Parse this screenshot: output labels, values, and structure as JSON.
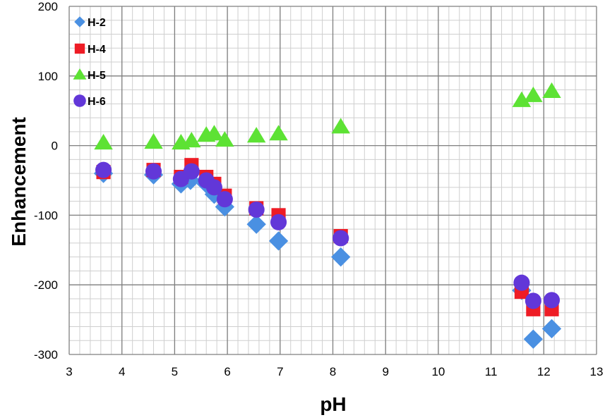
{
  "chart_data": {
    "type": "scatter",
    "title": "",
    "xlabel": "pH",
    "ylabel": "Enhancement",
    "xlim": [
      3,
      13
    ],
    "ylim": [
      -300,
      200
    ],
    "x_major_ticks": [
      3,
      4,
      5,
      6,
      7,
      8,
      9,
      10,
      11,
      12,
      13
    ],
    "x_tick_labels": [
      "3",
      "4",
      "5",
      "6",
      "7",
      "8",
      "9",
      "10",
      "11",
      "12",
      "13"
    ],
    "x_minor_step": 0.2,
    "y_major_ticks": [
      200,
      100,
      0,
      -100,
      -200,
      -300
    ],
    "y_tick_labels": [
      "200",
      "100",
      "0",
      "-100",
      "-200",
      "-300"
    ],
    "y_minor_step": 20,
    "grid": true,
    "legend_position": "top-left",
    "series": [
      {
        "name": "H-2",
        "marker": "diamond",
        "color": "#4a90e2",
        "points": [
          {
            "x": 3.65,
            "y": -40
          },
          {
            "x": 4.6,
            "y": -42
          },
          {
            "x": 5.12,
            "y": -55
          },
          {
            "x": 5.3,
            "y": -50
          },
          {
            "x": 5.6,
            "y": -55
          },
          {
            "x": 5.75,
            "y": -70
          },
          {
            "x": 5.95,
            "y": -88
          },
          {
            "x": 6.55,
            "y": -113
          },
          {
            "x": 6.97,
            "y": -137
          },
          {
            "x": 8.15,
            "y": -160
          },
          {
            "x": 11.58,
            "y": -208
          },
          {
            "x": 11.8,
            "y": -278
          },
          {
            "x": 12.15,
            "y": -263
          }
        ]
      },
      {
        "name": "H-4",
        "marker": "square",
        "color": "#ee1c25",
        "points": [
          {
            "x": 3.65,
            "y": -38
          },
          {
            "x": 4.6,
            "y": -35
          },
          {
            "x": 5.12,
            "y": -45
          },
          {
            "x": 5.32,
            "y": -28
          },
          {
            "x": 5.6,
            "y": -45
          },
          {
            "x": 5.75,
            "y": -55
          },
          {
            "x": 5.95,
            "y": -72
          },
          {
            "x": 6.55,
            "y": -90
          },
          {
            "x": 6.97,
            "y": -100
          },
          {
            "x": 8.15,
            "y": -130
          },
          {
            "x": 11.58,
            "y": -210
          },
          {
            "x": 11.8,
            "y": -235
          },
          {
            "x": 12.15,
            "y": -235
          }
        ]
      },
      {
        "name": "H-5",
        "marker": "triangle",
        "color": "#5de234",
        "points": [
          {
            "x": 3.65,
            "y": 4
          },
          {
            "x": 4.6,
            "y": 5
          },
          {
            "x": 5.12,
            "y": 4
          },
          {
            "x": 5.32,
            "y": 7
          },
          {
            "x": 5.6,
            "y": 15
          },
          {
            "x": 5.75,
            "y": 17
          },
          {
            "x": 5.95,
            "y": 8
          },
          {
            "x": 6.55,
            "y": 14
          },
          {
            "x": 6.97,
            "y": 17
          },
          {
            "x": 8.15,
            "y": 27
          },
          {
            "x": 11.58,
            "y": 65
          },
          {
            "x": 11.8,
            "y": 72
          },
          {
            "x": 12.15,
            "y": 78
          }
        ]
      },
      {
        "name": "H-6",
        "marker": "circle",
        "color": "#6237d8",
        "points": [
          {
            "x": 3.65,
            "y": -35
          },
          {
            "x": 4.6,
            "y": -37
          },
          {
            "x": 5.12,
            "y": -48
          },
          {
            "x": 5.32,
            "y": -37
          },
          {
            "x": 5.6,
            "y": -50
          },
          {
            "x": 5.75,
            "y": -60
          },
          {
            "x": 5.95,
            "y": -77
          },
          {
            "x": 6.55,
            "y": -92
          },
          {
            "x": 6.97,
            "y": -110
          },
          {
            "x": 8.15,
            "y": -133
          },
          {
            "x": 11.58,
            "y": -197
          },
          {
            "x": 11.8,
            "y": -223
          },
          {
            "x": 12.15,
            "y": -222
          }
        ]
      }
    ]
  }
}
